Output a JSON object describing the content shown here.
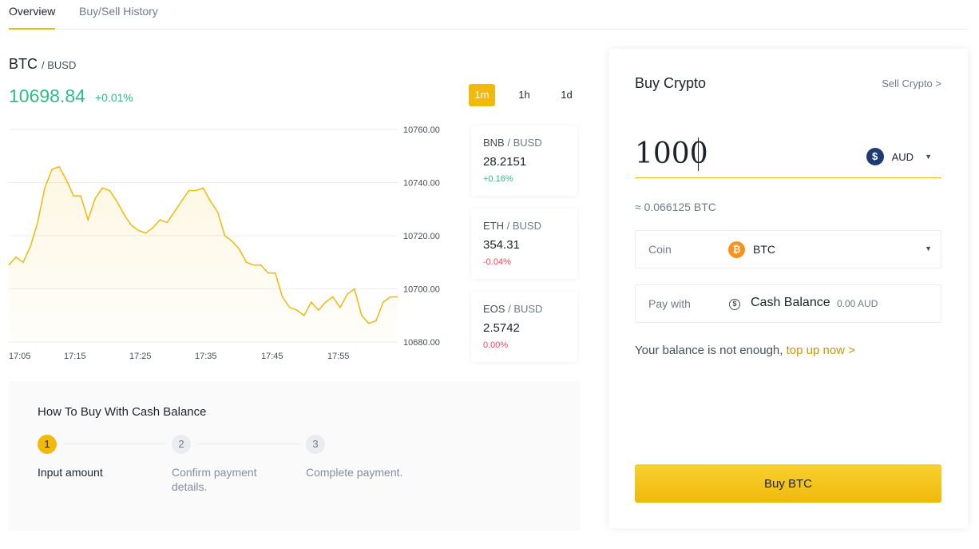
{
  "tabs": [
    {
      "label": "Overview",
      "active": true
    },
    {
      "label": "Buy/Sell History",
      "active": false
    }
  ],
  "market": {
    "base": "BTC",
    "quote": "BUSD",
    "price": "10698.84",
    "change": "+0.01%",
    "timeframes": [
      {
        "label": "1m",
        "active": true
      },
      {
        "label": "1h",
        "active": false
      },
      {
        "label": "1d",
        "active": false
      }
    ]
  },
  "chart_data": {
    "type": "area",
    "x_ticks": [
      "17:05",
      "17:15",
      "17:25",
      "17:35",
      "17:45",
      "17:55"
    ],
    "y_ticks": [
      "10760.00",
      "10740.00",
      "10720.00",
      "10700.00",
      "10680.00"
    ],
    "ylim": [
      10680,
      10760
    ],
    "line_color": "#f0b90b",
    "values": [
      10709,
      10712,
      10710,
      10716,
      10725,
      10738,
      10745,
      10746,
      10741,
      10735,
      10735,
      10726,
      10734,
      10738,
      10737,
      10733,
      10728,
      10724,
      10722,
      10721,
      10723,
      10726,
      10725,
      10729,
      10733,
      10737,
      10737,
      10738,
      10733,
      10729,
      10720,
      10718,
      10715,
      10710,
      10709,
      10709,
      10706,
      10706,
      10697,
      10693,
      10692,
      10690,
      10695,
      10692,
      10695,
      10697,
      10693,
      10698,
      10700,
      10690,
      10687,
      10688,
      10695,
      10697,
      10697
    ],
    "grid": true
  },
  "tickers": [
    {
      "base": "BNB",
      "quote": "BUSD",
      "price": "28.2151",
      "change": "+0.16%",
      "direction": "up"
    },
    {
      "base": "ETH",
      "quote": "BUSD",
      "price": "354.31",
      "change": "-0.04%",
      "direction": "down"
    },
    {
      "base": "EOS",
      "quote": "BUSD",
      "price": "2.5742",
      "change": "0.00%",
      "direction": "down"
    }
  ],
  "howto": {
    "title": "How To Buy With Cash Balance",
    "steps": [
      {
        "num": "1",
        "label": "Input amount"
      },
      {
        "num": "2",
        "label": "Confirm payment details."
      },
      {
        "num": "3",
        "label": "Complete payment."
      }
    ]
  },
  "buy": {
    "title": "Buy Crypto",
    "sell_link": "Sell Crypto >",
    "amount": "1000",
    "currency": "AUD",
    "currency_symbol": "$",
    "estimate": "≈ 0.066125 BTC",
    "coin_label": "Coin",
    "coin": "BTC",
    "pay_label": "Pay with",
    "pay_method": "Cash Balance",
    "pay_balance": "0.00 AUD",
    "notice": "Your balance is not enough,",
    "notice_link": "top up now >",
    "button": "Buy BTC"
  },
  "colors": {
    "accent": "#f0b90b",
    "up": "#2ebd85",
    "down": "#f6465d"
  }
}
